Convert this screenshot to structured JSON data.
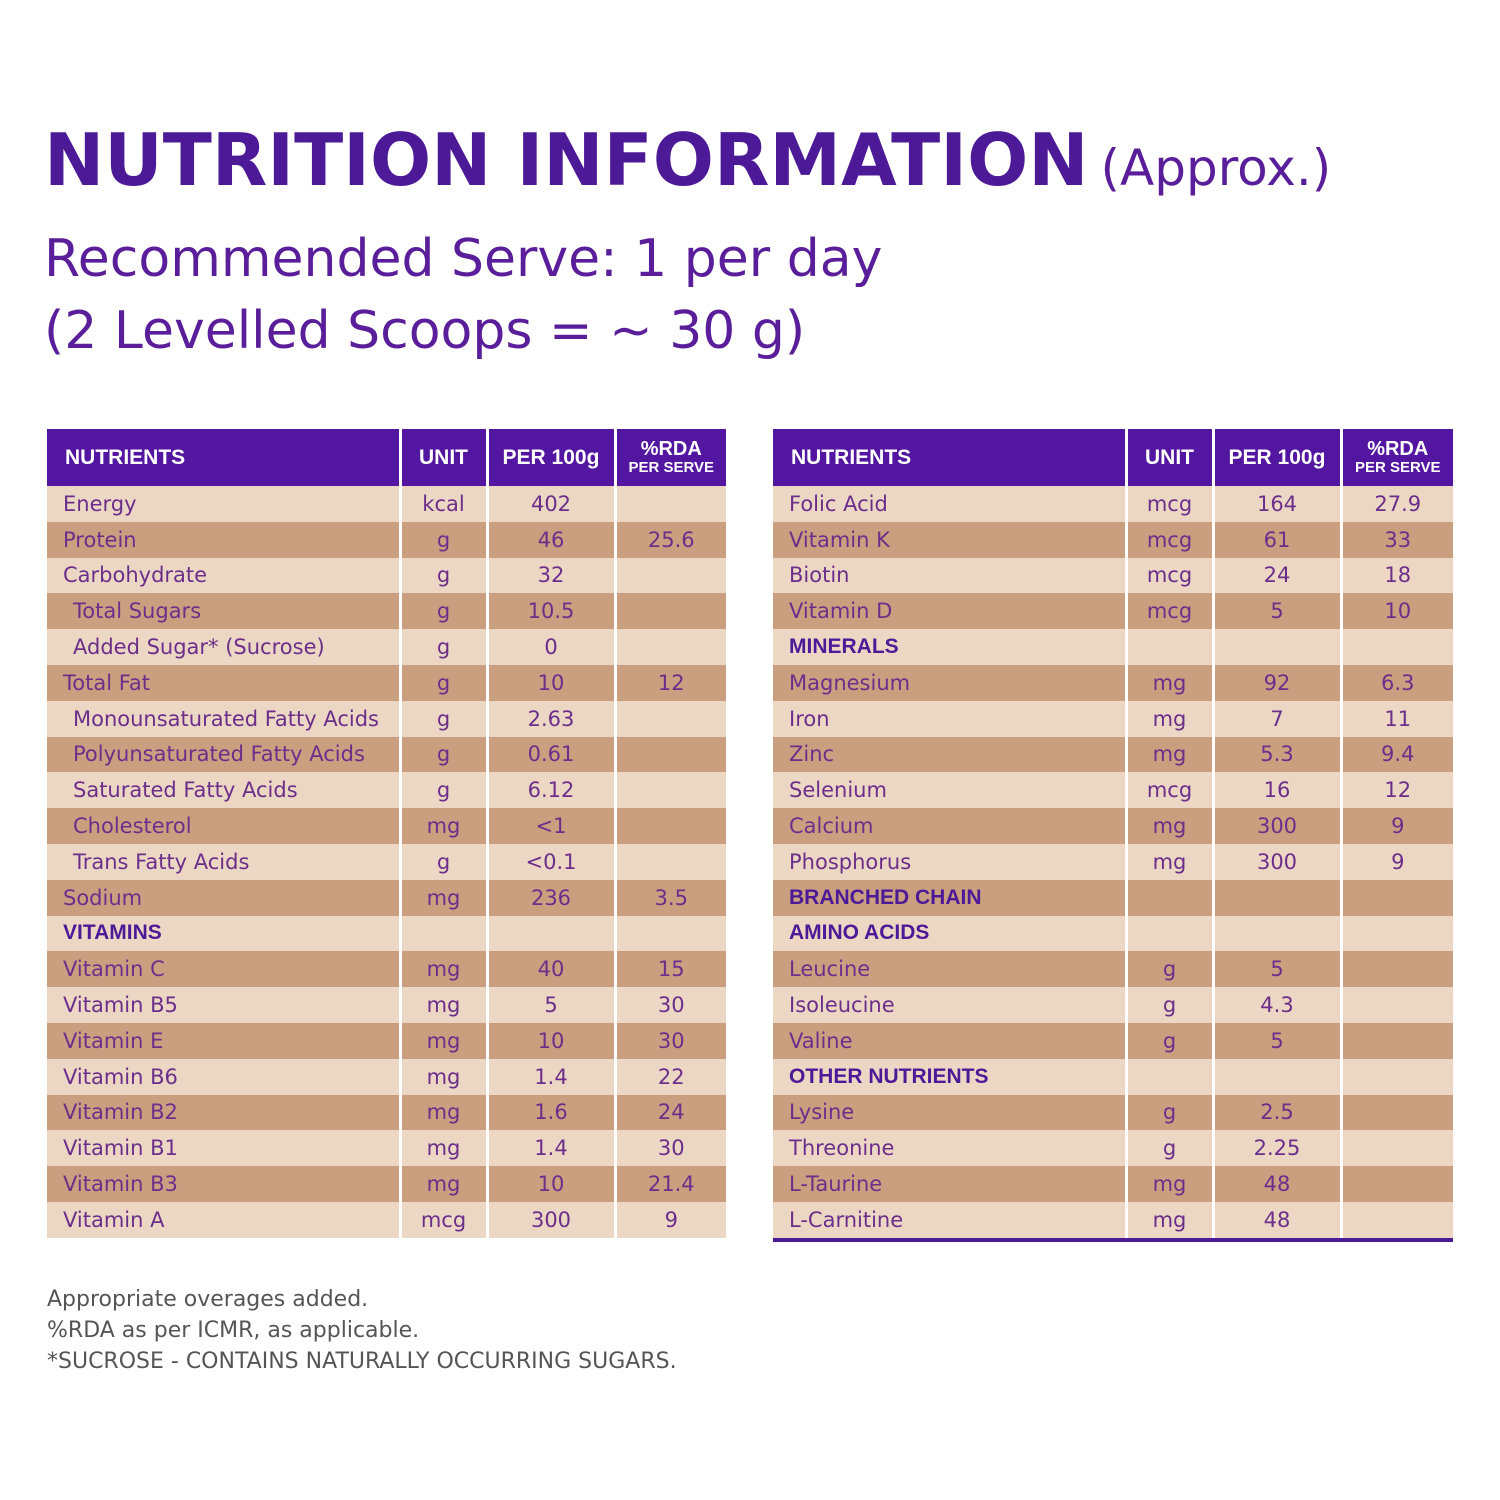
{
  "header": {
    "title": "NUTRITION INFORMATION",
    "title_suffix": "(Approx.)",
    "serve_line1": "Recommended Serve: 1 per day",
    "serve_line2": "(2 Levelled Scoops = ~ 30 g)"
  },
  "columns": {
    "nutrients": "NUTRIENTS",
    "unit": "UNIT",
    "per100": "PER 100g",
    "rda_top": "%RDA",
    "rda_bottom": "PER SERVE"
  },
  "left_table": [
    {
      "name": "Energy",
      "unit": "kcal",
      "per100": "402",
      "rda": ""
    },
    {
      "name": "Protein",
      "unit": "g",
      "per100": "46",
      "rda": "25.6"
    },
    {
      "name": "Carbohydrate",
      "unit": "g",
      "per100": "32",
      "rda": ""
    },
    {
      "name": "Total Sugars",
      "unit": "g",
      "per100": "10.5",
      "rda": "",
      "indent": true
    },
    {
      "name": "Added Sugar* (Sucrose)",
      "unit": "g",
      "per100": "0",
      "rda": "",
      "indent": true
    },
    {
      "name": "Total Fat",
      "unit": "g",
      "per100": "10",
      "rda": "12"
    },
    {
      "name": "Monounsaturated Fatty Acids",
      "unit": "g",
      "per100": "2.63",
      "rda": "",
      "indent": true
    },
    {
      "name": "Polyunsaturated Fatty Acids",
      "unit": "g",
      "per100": "0.61",
      "rda": "",
      "indent": true
    },
    {
      "name": "Saturated Fatty Acids",
      "unit": "g",
      "per100": "6.12",
      "rda": "",
      "indent": true
    },
    {
      "name": "Cholesterol",
      "unit": "mg",
      "per100": "<1",
      "rda": "",
      "indent": true
    },
    {
      "name": "Trans Fatty Acids",
      "unit": "g",
      "per100": "<0.1",
      "rda": "",
      "indent": true
    },
    {
      "name": "Sodium",
      "unit": "mg",
      "per100": "236",
      "rda": "3.5"
    },
    {
      "name": "VITAMINS",
      "unit": "",
      "per100": "",
      "rda": "",
      "section": true
    },
    {
      "name": "Vitamin C",
      "unit": "mg",
      "per100": "40",
      "rda": "15"
    },
    {
      "name": "Vitamin B5",
      "unit": "mg",
      "per100": "5",
      "rda": "30"
    },
    {
      "name": "Vitamin E",
      "unit": "mg",
      "per100": "10",
      "rda": "30"
    },
    {
      "name": "Vitamin B6",
      "unit": "mg",
      "per100": "1.4",
      "rda": "22"
    },
    {
      "name": "Vitamin B2",
      "unit": "mg",
      "per100": "1.6",
      "rda": "24"
    },
    {
      "name": "Vitamin B1",
      "unit": "mg",
      "per100": "1.4",
      "rda": "30"
    },
    {
      "name": "Vitamin B3",
      "unit": "mg",
      "per100": "10",
      "rda": "21.4"
    },
    {
      "name": "Vitamin A",
      "unit": "mcg",
      "per100": "300",
      "rda": "9"
    }
  ],
  "right_table": [
    {
      "name": "Folic Acid",
      "unit": "mcg",
      "per100": "164",
      "rda": "27.9"
    },
    {
      "name": "Vitamin K",
      "unit": "mcg",
      "per100": "61",
      "rda": "33"
    },
    {
      "name": "Biotin",
      "unit": "mcg",
      "per100": "24",
      "rda": "18"
    },
    {
      "name": "Vitamin D",
      "unit": "mcg",
      "per100": "5",
      "rda": "10"
    },
    {
      "name": "MINERALS",
      "unit": "",
      "per100": "",
      "rda": "",
      "section": true
    },
    {
      "name": "Magnesium",
      "unit": "mg",
      "per100": "92",
      "rda": "6.3"
    },
    {
      "name": "Iron",
      "unit": "mg",
      "per100": "7",
      "rda": "11"
    },
    {
      "name": "Zinc",
      "unit": "mg",
      "per100": "5.3",
      "rda": "9.4"
    },
    {
      "name": "Selenium",
      "unit": "mcg",
      "per100": "16",
      "rda": "12"
    },
    {
      "name": "Calcium",
      "unit": "mg",
      "per100": "300",
      "rda": "9"
    },
    {
      "name": "Phosphorus",
      "unit": "mg",
      "per100": "300",
      "rda": "9"
    },
    {
      "name": "BRANCHED CHAIN",
      "unit": "",
      "per100": "",
      "rda": "",
      "section": true
    },
    {
      "name": "AMINO ACIDS",
      "unit": "",
      "per100": "",
      "rda": "",
      "section": true
    },
    {
      "name": "Leucine",
      "unit": "g",
      "per100": "5",
      "rda": ""
    },
    {
      "name": "Isoleucine",
      "unit": "g",
      "per100": "4.3",
      "rda": ""
    },
    {
      "name": "Valine",
      "unit": "g",
      "per100": "5",
      "rda": ""
    },
    {
      "name": "OTHER NUTRIENTS",
      "unit": "",
      "per100": "",
      "rda": "",
      "section": true
    },
    {
      "name": "Lysine",
      "unit": "g",
      "per100": "2.5",
      "rda": ""
    },
    {
      "name": "Threonine",
      "unit": "g",
      "per100": "2.25",
      "rda": ""
    },
    {
      "name": "L-Taurine",
      "unit": "mg",
      "per100": "48",
      "rda": ""
    },
    {
      "name": "L-Carnitine",
      "unit": "mg",
      "per100": "48",
      "rda": ""
    }
  ],
  "footer": {
    "line1": "Appropriate overages added.",
    "line2": "%RDA as per ICMR, as applicable.",
    "line3": "*SUCROSE - CONTAINS NATURALLY OCCURRING SUGARS."
  },
  "colors": {
    "header_purple": "#5316a0",
    "title_purple": "#4d1a97",
    "row_light": "#ecd6c4",
    "row_dark": "#c99f80",
    "text_purple": "#6b2f8a"
  }
}
